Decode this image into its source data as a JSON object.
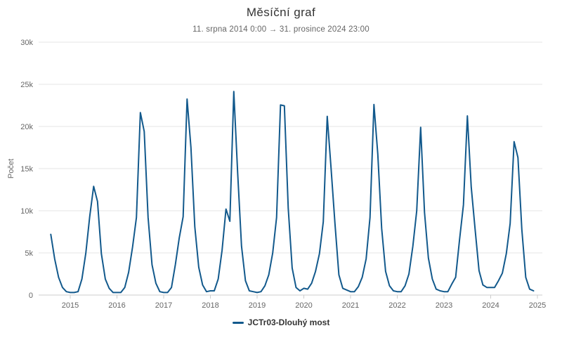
{
  "chart_data": {
    "type": "line",
    "title": "Měsíční graf",
    "subtitle": "11. srpna 2014 0:00 → 31. prosince 2024 23:00",
    "ylabel": "Počet",
    "ylim": [
      0,
      30000
    ],
    "grid": true,
    "legend_position": "bottom",
    "yticks": [
      0,
      5000,
      10000,
      15000,
      20000,
      25000,
      30000
    ],
    "ytick_labels": [
      "0",
      "5k",
      "10k",
      "15k",
      "20k",
      "25k",
      "30k"
    ],
    "xtick_labels": [
      "2015",
      "2016",
      "2017",
      "2018",
      "2019",
      "2020",
      "2021",
      "2022",
      "2023",
      "2024",
      "2025"
    ],
    "legend": [
      {
        "name": "JCTr03-Dlouhý most",
        "color": "#12598c"
      }
    ],
    "series": [
      {
        "name": "JCTr03-Dlouhý most",
        "color": "#12598c",
        "points": [
          [
            "2014-08",
            7200
          ],
          [
            "2014-09",
            4300
          ],
          [
            "2014-10",
            2100
          ],
          [
            "2014-11",
            900
          ],
          [
            "2014-12",
            400
          ],
          [
            "2015-01",
            300
          ],
          [
            "2015-02",
            300
          ],
          [
            "2015-03",
            400
          ],
          [
            "2015-04",
            1900
          ],
          [
            "2015-05",
            5000
          ],
          [
            "2015-06",
            9300
          ],
          [
            "2015-07",
            12900
          ],
          [
            "2015-08",
            11100
          ],
          [
            "2015-09",
            4900
          ],
          [
            "2015-10",
            1900
          ],
          [
            "2015-11",
            800
          ],
          [
            "2015-12",
            300
          ],
          [
            "2016-01",
            300
          ],
          [
            "2016-02",
            300
          ],
          [
            "2016-03",
            900
          ],
          [
            "2016-04",
            2700
          ],
          [
            "2016-05",
            5700
          ],
          [
            "2016-06",
            9200
          ],
          [
            "2016-07",
            21650
          ],
          [
            "2016-08",
            19400
          ],
          [
            "2016-09",
            9200
          ],
          [
            "2016-10",
            3600
          ],
          [
            "2016-11",
            1400
          ],
          [
            "2016-12",
            400
          ],
          [
            "2017-01",
            300
          ],
          [
            "2017-02",
            300
          ],
          [
            "2017-03",
            900
          ],
          [
            "2017-04",
            3600
          ],
          [
            "2017-05",
            6800
          ],
          [
            "2017-06",
            9300
          ],
          [
            "2017-07",
            23250
          ],
          [
            "2017-08",
            17500
          ],
          [
            "2017-09",
            8100
          ],
          [
            "2017-10",
            3300
          ],
          [
            "2017-11",
            1200
          ],
          [
            "2017-12",
            400
          ],
          [
            "2018-01",
            500
          ],
          [
            "2018-02",
            500
          ],
          [
            "2018-03",
            1900
          ],
          [
            "2018-04",
            5300
          ],
          [
            "2018-05",
            10200
          ],
          [
            "2018-06",
            8750
          ],
          [
            "2018-07",
            24150
          ],
          [
            "2018-08",
            14500
          ],
          [
            "2018-09",
            5800
          ],
          [
            "2018-10",
            1700
          ],
          [
            "2018-11",
            500
          ],
          [
            "2018-12",
            400
          ],
          [
            "2019-01",
            300
          ],
          [
            "2019-02",
            400
          ],
          [
            "2019-03",
            1100
          ],
          [
            "2019-04",
            2400
          ],
          [
            "2019-05",
            5000
          ],
          [
            "2019-06",
            9200
          ],
          [
            "2019-07",
            22550
          ],
          [
            "2019-08",
            22450
          ],
          [
            "2019-09",
            10300
          ],
          [
            "2019-10",
            3200
          ],
          [
            "2019-11",
            900
          ],
          [
            "2019-12",
            500
          ],
          [
            "2020-01",
            800
          ],
          [
            "2020-02",
            700
          ],
          [
            "2020-03",
            1400
          ],
          [
            "2020-04",
            2800
          ],
          [
            "2020-05",
            4900
          ],
          [
            "2020-06",
            8700
          ],
          [
            "2020-07",
            21200
          ],
          [
            "2020-08",
            15000
          ],
          [
            "2020-09",
            8500
          ],
          [
            "2020-10",
            2400
          ],
          [
            "2020-11",
            800
          ],
          [
            "2020-12",
            600
          ],
          [
            "2021-01",
            400
          ],
          [
            "2021-02",
            400
          ],
          [
            "2021-03",
            1000
          ],
          [
            "2021-04",
            2100
          ],
          [
            "2021-05",
            4300
          ],
          [
            "2021-06",
            9200
          ],
          [
            "2021-07",
            22600
          ],
          [
            "2021-08",
            16700
          ],
          [
            "2021-09",
            7900
          ],
          [
            "2021-10",
            2800
          ],
          [
            "2021-11",
            1100
          ],
          [
            "2021-12",
            500
          ],
          [
            "2022-01",
            400
          ],
          [
            "2022-02",
            400
          ],
          [
            "2022-03",
            1100
          ],
          [
            "2022-04",
            2500
          ],
          [
            "2022-05",
            5800
          ],
          [
            "2022-06",
            10000
          ],
          [
            "2022-07",
            19900
          ],
          [
            "2022-08",
            9800
          ],
          [
            "2022-09",
            4400
          ],
          [
            "2022-10",
            1900
          ],
          [
            "2022-11",
            700
          ],
          [
            "2022-12",
            500
          ],
          [
            "2023-01",
            400
          ],
          [
            "2023-02",
            400
          ],
          [
            "2023-03",
            1300
          ],
          [
            "2023-04",
            2100
          ],
          [
            "2023-05",
            6600
          ],
          [
            "2023-06",
            10700
          ],
          [
            "2023-07",
            21250
          ],
          [
            "2023-08",
            12800
          ],
          [
            "2023-09",
            7800
          ],
          [
            "2023-10",
            2900
          ],
          [
            "2023-11",
            1200
          ],
          [
            "2023-12",
            900
          ],
          [
            "2024-01",
            900
          ],
          [
            "2024-02",
            900
          ],
          [
            "2024-03",
            1700
          ],
          [
            "2024-04",
            2600
          ],
          [
            "2024-05",
            4900
          ],
          [
            "2024-06",
            8500
          ],
          [
            "2024-07",
            18200
          ],
          [
            "2024-08",
            16300
          ],
          [
            "2024-09",
            7800
          ],
          [
            "2024-10",
            2100
          ],
          [
            "2024-11",
            700
          ],
          [
            "2024-12",
            500
          ]
        ]
      }
    ]
  }
}
